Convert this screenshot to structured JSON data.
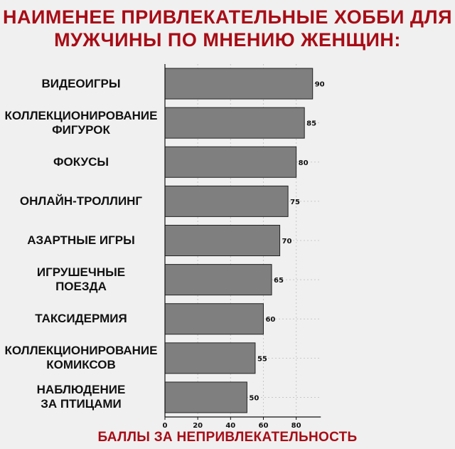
{
  "title_lines": [
    "НАИМЕНЕЕ ПРИВЛЕКАТЕЛЬНЫЕ ХОББИ ДЛЯ",
    "МУЖЧИНЫ ПО МНЕНИЮ ЖЕНЩИН:"
  ],
  "chart_data": {
    "type": "bar",
    "orientation": "horizontal",
    "categories": [
      [
        "ВИДЕОИГРЫ"
      ],
      [
        "КОЛЛЕКЦИОНИРОВАНИЕ",
        "ФИГУРОК"
      ],
      [
        "ФОКУСЫ"
      ],
      [
        "ОНЛАЙН-ТРОЛЛИНГ"
      ],
      [
        "АЗАРТНЫЕ ИГРЫ"
      ],
      [
        "ИГРУШЕЧНЫЕ",
        "ПОЕЗДА"
      ],
      [
        "ТАКСИДЕРМИЯ"
      ],
      [
        "КОЛЛЕКЦИОНИРОВАНИЕ",
        "КОМИКСОВ"
      ],
      [
        "НАБЛЮДЕНИЕ",
        "ЗА ПТИЦАМИ"
      ]
    ],
    "values": [
      90,
      85,
      80,
      75,
      70,
      65,
      60,
      55,
      50
    ],
    "xlabel": "БАЛЛЫ ЗА НЕПРИВЛЕКАТЕЛЬНОСТЬ",
    "xlim": [
      0,
      95
    ],
    "xticks": [
      0,
      20,
      40,
      60,
      80
    ],
    "grid": true,
    "colors": {
      "bar": "#7f7f7f",
      "bar_edge": "#222222",
      "title": "#a80c16",
      "background": "#f0f0f0"
    }
  }
}
